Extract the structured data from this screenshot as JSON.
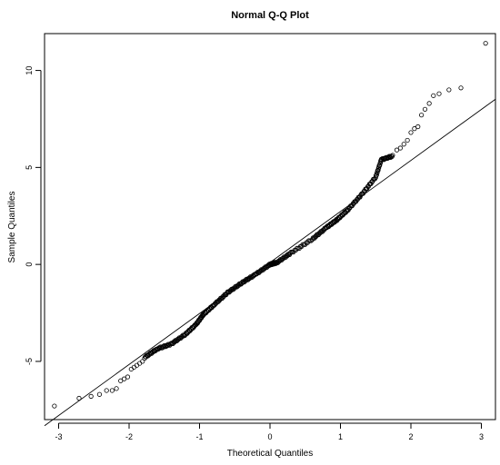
{
  "chart_data": {
    "type": "scatter",
    "title": "Normal Q-Q Plot",
    "xlabel": "Theoretical Quantiles",
    "ylabel": "Sample Quantiles",
    "xlim": [
      -3.2,
      3.2
    ],
    "ylim": [
      -8.0,
      11.9
    ],
    "x_ticks": [
      -3,
      -2,
      -1,
      0,
      1,
      2,
      3
    ],
    "y_ticks": [
      -5,
      0,
      5,
      10
    ],
    "grid": false,
    "reference_line": {
      "label": "qqline",
      "intercept": 0.1,
      "slope": 2.63
    },
    "points": {
      "tail_low": [
        [
          -3.06,
          -7.3
        ],
        [
          -2.71,
          -6.9
        ],
        [
          -2.54,
          -6.8
        ],
        [
          -2.42,
          -6.7
        ],
        [
          -2.32,
          -6.5
        ],
        [
          -2.24,
          -6.5
        ],
        [
          -2.18,
          -6.4
        ],
        [
          -2.12,
          -6.0
        ],
        [
          -2.07,
          -5.9
        ],
        [
          -2.02,
          -5.8
        ],
        [
          -1.97,
          -5.4
        ],
        [
          -1.93,
          -5.3
        ],
        [
          -1.89,
          -5.2
        ],
        [
          -1.85,
          -5.1
        ],
        [
          -1.81,
          -5.0
        ]
      ],
      "body": [
        [
          -1.78,
          -4.8
        ],
        [
          -1.6,
          -4.35
        ],
        [
          -1.4,
          -4.1
        ],
        [
          -1.2,
          -3.6
        ],
        [
          -1.05,
          -3.1
        ],
        [
          -0.95,
          -2.6
        ],
        [
          -0.8,
          -2.1
        ],
        [
          -0.6,
          -1.45
        ],
        [
          -0.4,
          -0.95
        ],
        [
          -0.2,
          -0.5
        ],
        [
          0.0,
          0.0
        ],
        [
          0.1,
          0.1
        ],
        [
          0.3,
          0.6
        ],
        [
          0.6,
          1.3
        ],
        [
          0.8,
          1.9
        ],
        [
          0.95,
          2.3
        ],
        [
          1.1,
          2.8
        ],
        [
          1.3,
          3.6
        ],
        [
          1.5,
          4.5
        ],
        [
          1.58,
          5.4
        ],
        [
          1.75,
          5.6
        ]
      ],
      "tail_high": [
        [
          1.8,
          5.9
        ],
        [
          1.85,
          6.0
        ],
        [
          1.9,
          6.2
        ],
        [
          1.95,
          6.4
        ],
        [
          2.0,
          6.8
        ],
        [
          2.05,
          7.0
        ],
        [
          2.1,
          7.1
        ],
        [
          2.15,
          7.7
        ],
        [
          2.2,
          8.0
        ],
        [
          2.26,
          8.3
        ],
        [
          2.32,
          8.7
        ],
        [
          2.4,
          8.8
        ],
        [
          2.54,
          9.0
        ],
        [
          2.71,
          9.1
        ],
        [
          3.06,
          11.4
        ]
      ]
    }
  }
}
